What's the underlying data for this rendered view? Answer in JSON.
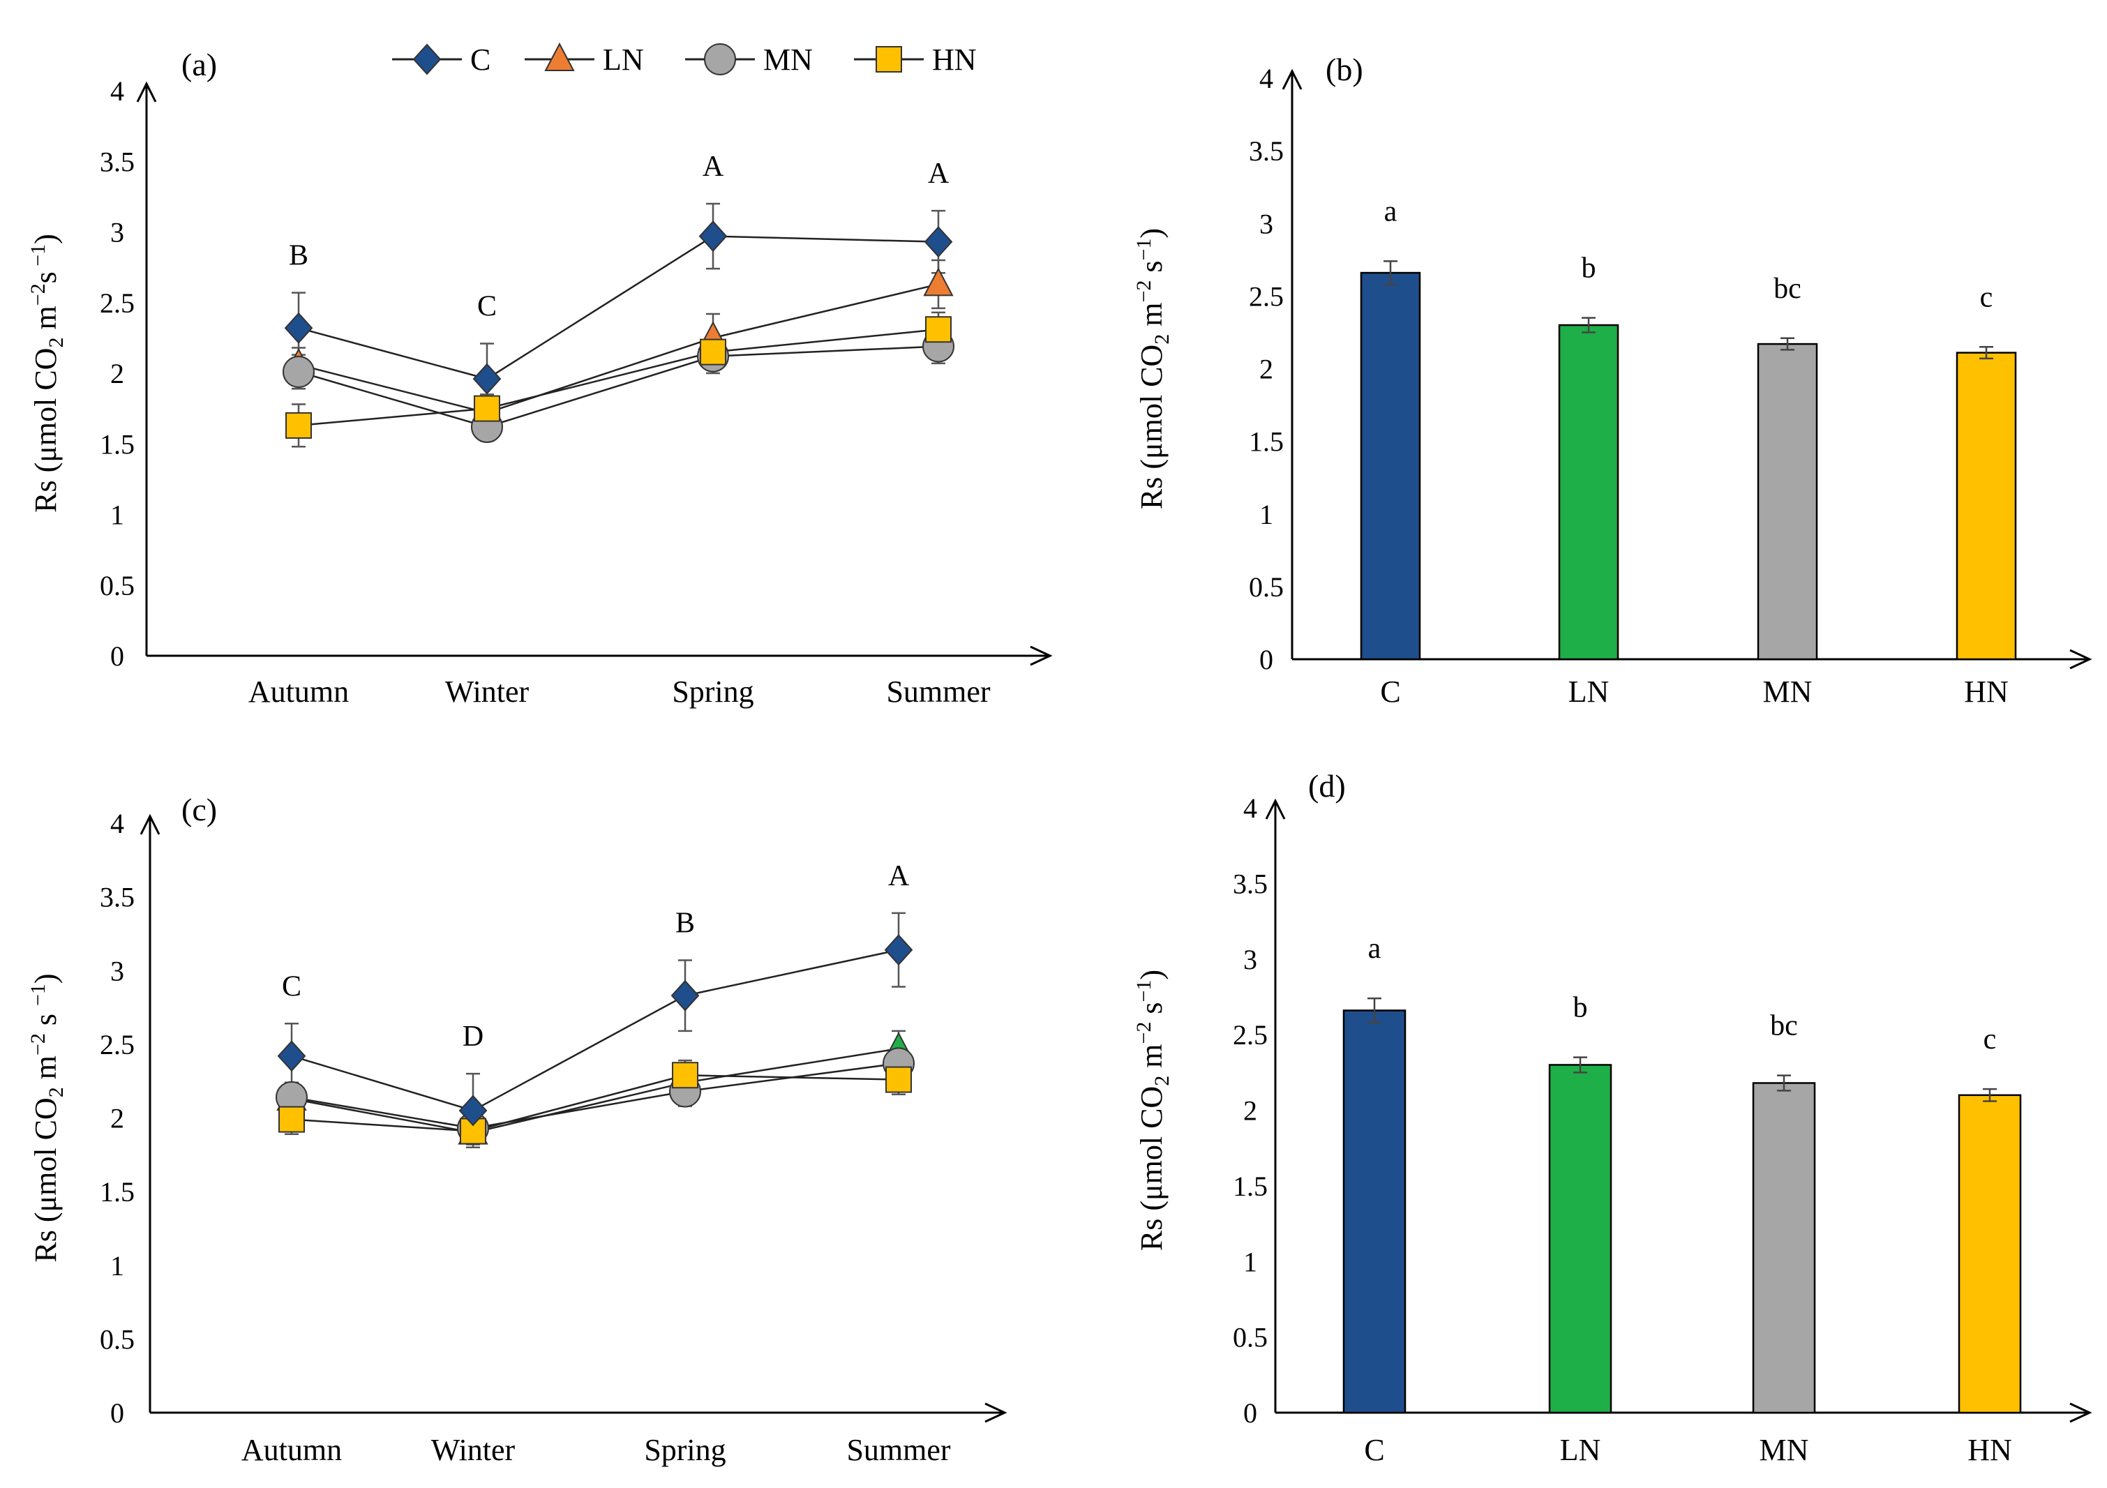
{
  "legend": {
    "entries": [
      {
        "key": "C",
        "label": "C",
        "marker": "diamond",
        "color": "#1f4e8c"
      },
      {
        "key": "LN",
        "label": "LN",
        "marker": "triangle",
        "color": "#ed7d31"
      },
      {
        "key": "MN",
        "label": "MN",
        "marker": "circle",
        "color": "#a6a6a6"
      },
      {
        "key": "HN",
        "label": "HN",
        "marker": "square",
        "color": "#ffc000"
      }
    ]
  },
  "chart_data": [
    {
      "type": "line",
      "panel": "(a)",
      "ylabel": "Rs (μmol CO₂ m⁻² s⁻¹)",
      "ylim": [
        0,
        4
      ],
      "yticks": [
        "0",
        "0.5",
        "1",
        "1.5",
        "2",
        "2.5",
        "3",
        "3.5",
        "4"
      ],
      "categories": [
        "Autumn",
        "Winter",
        "Spring",
        "Summer"
      ],
      "letters": [
        "B",
        "C",
        "A",
        "A"
      ],
      "series": [
        {
          "name": "C",
          "color": "#1f4e8c",
          "marker": "diamond",
          "values": [
            2.32,
            1.96,
            2.97,
            2.93
          ],
          "errors": [
            0.25,
            0.25,
            0.23,
            0.22
          ]
        },
        {
          "name": "LN",
          "color": "#ed7d31",
          "marker": "triangle",
          "values": [
            2.06,
            1.72,
            2.25,
            2.63
          ],
          "errors": [
            0.12,
            0.08,
            0.17,
            0.17
          ]
        },
        {
          "name": "MN",
          "color": "#a6a6a6",
          "marker": "circle",
          "values": [
            2.01,
            1.62,
            2.12,
            2.19
          ],
          "errors": [
            0.12,
            0.1,
            0.12,
            0.12
          ]
        },
        {
          "name": "HN",
          "color": "#ffc000",
          "marker": "square",
          "values": [
            1.63,
            1.75,
            2.15,
            2.31
          ],
          "errors": [
            0.15,
            0.1,
            0.12,
            0.12
          ]
        }
      ]
    },
    {
      "type": "bar",
      "panel": "(b)",
      "ylabel": "Rs (μmol CO₂ m⁻² s⁻¹)",
      "ylim": [
        0,
        4
      ],
      "yticks": [
        "0",
        "0.5",
        "1",
        "1.5",
        "2",
        "2.5",
        "3",
        "3.5",
        "4"
      ],
      "categories": [
        "C",
        "LN",
        "MN",
        "HN"
      ],
      "values": [
        2.66,
        2.3,
        2.17,
        2.11
      ],
      "errors": [
        0.08,
        0.05,
        0.04,
        0.04
      ],
      "colors": [
        "#1f4e8c",
        "#1faf48",
        "#a6a6a6",
        "#ffc000"
      ],
      "letters": [
        "a",
        "b",
        "bc",
        "c"
      ]
    },
    {
      "type": "line",
      "panel": "(c)",
      "ylabel": "Rs (μmol CO₂ m⁻² s ⁻¹)",
      "ylim": [
        0,
        4
      ],
      "yticks": [
        "0",
        "0.5",
        "1",
        "1.5",
        "2",
        "2.5",
        "3",
        "3.5",
        "4"
      ],
      "categories": [
        "Autumn",
        "Winter",
        "Spring",
        "Summer"
      ],
      "letters": [
        "C",
        "D",
        "B",
        "A"
      ],
      "series": [
        {
          "name": "C",
          "color": "#1f4e8c",
          "marker": "diamond",
          "values": [
            2.42,
            2.05,
            2.83,
            3.14
          ],
          "errors": [
            0.22,
            0.25,
            0.24,
            0.25
          ]
        },
        {
          "name": "LN",
          "color": "#1faf48",
          "marker": "triangle",
          "values": [
            2.13,
            1.9,
            2.24,
            2.47
          ],
          "errors": [
            0.1,
            0.08,
            0.1,
            0.12
          ]
        },
        {
          "name": "MN",
          "color": "#a6a6a6",
          "marker": "circle",
          "values": [
            2.14,
            1.93,
            2.18,
            2.37
          ],
          "errors": [
            0.1,
            0.08,
            0.1,
            0.12
          ]
        },
        {
          "name": "HN",
          "color": "#ffc000",
          "marker": "square",
          "values": [
            1.99,
            1.91,
            2.29,
            2.26
          ],
          "errors": [
            0.1,
            0.08,
            0.1,
            0.1
          ]
        }
      ]
    },
    {
      "type": "bar",
      "panel": "(d)",
      "ylabel": "Rs (μmol CO₂  m⁻² s⁻¹)",
      "ylim": [
        0,
        4
      ],
      "yticks": [
        "0",
        "0.5",
        "1",
        "1.5",
        "2",
        "2.5",
        "3",
        "3.5",
        "4"
      ],
      "categories": [
        "C",
        "LN",
        "MN",
        "HN"
      ],
      "values": [
        2.66,
        2.3,
        2.18,
        2.1
      ],
      "errors": [
        0.08,
        0.05,
        0.05,
        0.04
      ],
      "colors": [
        "#1f4e8c",
        "#1faf48",
        "#a6a6a6",
        "#ffc000"
      ],
      "letters": [
        "a",
        "b",
        "bc",
        "c"
      ]
    }
  ]
}
